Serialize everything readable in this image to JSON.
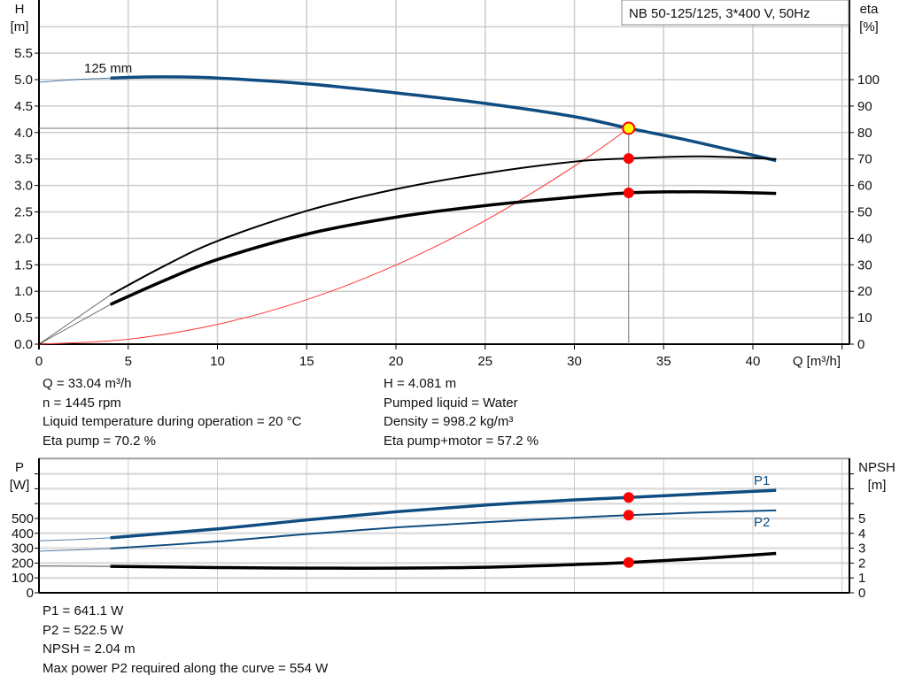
{
  "chart_data": [
    {
      "type": "line",
      "title": "NB 50-125/125, 3*400 V, 50Hz",
      "xlabel": "Q [m³/h]",
      "ylabel_left": [
        "H",
        "[m]"
      ],
      "ylabel_right": [
        "eta",
        "[%]"
      ],
      "xlim": [
        0,
        45
      ],
      "ylim_left": [
        0,
        6
      ],
      "ylim_right": [
        0,
        120
      ],
      "x_ticks": [
        "0",
        "5",
        "10",
        "15",
        "20",
        "25",
        "30",
        "35",
        "40"
      ],
      "y_ticks_left": [
        "0.0",
        "0.5",
        "1.0",
        "1.5",
        "2.0",
        "2.5",
        "3.0",
        "3.5",
        "4.0",
        "4.5",
        "5.0",
        "5.5"
      ],
      "y_ticks_right": [
        "0",
        "10",
        "20",
        "30",
        "40",
        "50",
        "60",
        "70",
        "80",
        "90",
        "100"
      ],
      "grid": true,
      "curve_label": "125 mm",
      "series": [
        {
          "key": "head",
          "axis": "left",
          "color": "#0f4c81",
          "x": [
            0,
            2,
            4,
            6,
            8,
            10,
            15,
            20,
            25,
            30,
            33.04,
            36,
            39,
            41.3
          ],
          "y": [
            4.95,
            5.0,
            5.03,
            5.05,
            5.05,
            5.03,
            4.92,
            4.75,
            4.55,
            4.3,
            4.081,
            3.88,
            3.65,
            3.47
          ]
        },
        {
          "key": "eta_pump",
          "axis": "right",
          "color": "#000000",
          "x": [
            0,
            4,
            7,
            10,
            15,
            20,
            25,
            30,
            33.04,
            37,
            41.3
          ],
          "y": [
            0,
            18.6,
            29.5,
            39,
            50.4,
            58.6,
            64.6,
            69,
            70.2,
            71,
            70
          ]
        },
        {
          "key": "eta_pump_motor",
          "axis": "right",
          "color": "#000000",
          "x": [
            0,
            4,
            7,
            10,
            15,
            20,
            25,
            30,
            33.04,
            37,
            41.3
          ],
          "y": [
            0,
            15,
            24,
            32,
            41.6,
            48,
            52.4,
            55.6,
            57.2,
            57.6,
            57
          ]
        },
        {
          "key": "system",
          "axis": "left",
          "color": "#ff3333",
          "x": [
            0,
            5,
            10,
            15,
            20,
            25,
            30,
            33.04
          ],
          "y": [
            0,
            0.093,
            0.374,
            0.841,
            1.495,
            2.336,
            3.364,
            4.081
          ]
        }
      ],
      "operating_point": {
        "Q": 33.04,
        "H": 4.081,
        "eta_pump": 70.2,
        "eta_pump_motor": 57.2
      }
    },
    {
      "type": "line",
      "xlabel": "",
      "ylabel_left": [
        "P",
        "[W]"
      ],
      "ylabel_right": [
        "NPSH",
        "[m]"
      ],
      "xlim": [
        0,
        45
      ],
      "ylim_left": [
        0,
        900
      ],
      "ylim_right": [
        0,
        9
      ],
      "y_ticks_left": [
        "0",
        "100",
        "200",
        "300",
        "400",
        "500"
      ],
      "y_ticks_right": [
        "0",
        "1",
        "2",
        "3",
        "4",
        "5"
      ],
      "grid": true,
      "series": [
        {
          "name": "P1",
          "key": "p1",
          "axis": "left",
          "color": "#0f4c81",
          "x": [
            0,
            2,
            4,
            10,
            15,
            20,
            25,
            30,
            33.04,
            37,
            41.3
          ],
          "y": [
            350,
            358,
            370,
            430,
            490,
            545,
            590,
            625,
            641.1,
            665,
            690
          ]
        },
        {
          "name": "P2",
          "key": "p2",
          "axis": "left",
          "color": "#0f4c81",
          "x": [
            0,
            2,
            4,
            10,
            15,
            20,
            25,
            30,
            33.04,
            37,
            41.3
          ],
          "y": [
            280,
            288,
            298,
            345,
            395,
            440,
            475,
            505,
            522.5,
            540,
            554
          ]
        },
        {
          "key": "npsh",
          "axis": "right",
          "color": "#000000",
          "x": [
            0,
            4,
            10,
            15,
            20,
            25,
            30,
            33.04,
            37,
            41.3
          ],
          "y": [
            1.8,
            1.78,
            1.7,
            1.66,
            1.66,
            1.72,
            1.9,
            2.04,
            2.3,
            2.65
          ]
        }
      ],
      "operating_point": {
        "Q": 33.04,
        "P1": 641.1,
        "P2": 522.5,
        "NPSH": 2.04
      }
    }
  ],
  "info_top": {
    "left": [
      "Q = 33.04 m³/h",
      "n = 1445 rpm",
      "Liquid temperature during operation = 20 °C",
      "Eta pump = 70.2 %"
    ],
    "right": [
      "H = 4.081 m",
      "Pumped liquid = Water",
      "Density = 998.2 kg/m³",
      "Eta pump+motor = 57.2 %"
    ]
  },
  "info_bottom": [
    "P1 = 641.1 W",
    "P2 = 522.5 W",
    "NPSH = 2.04 m",
    "Max power P2 required along the curve = 554 W"
  ],
  "colors": {
    "grid": "#cccccc",
    "head": "#0f4c81",
    "point": "#ff0000",
    "op_fill": "#ffff00"
  }
}
